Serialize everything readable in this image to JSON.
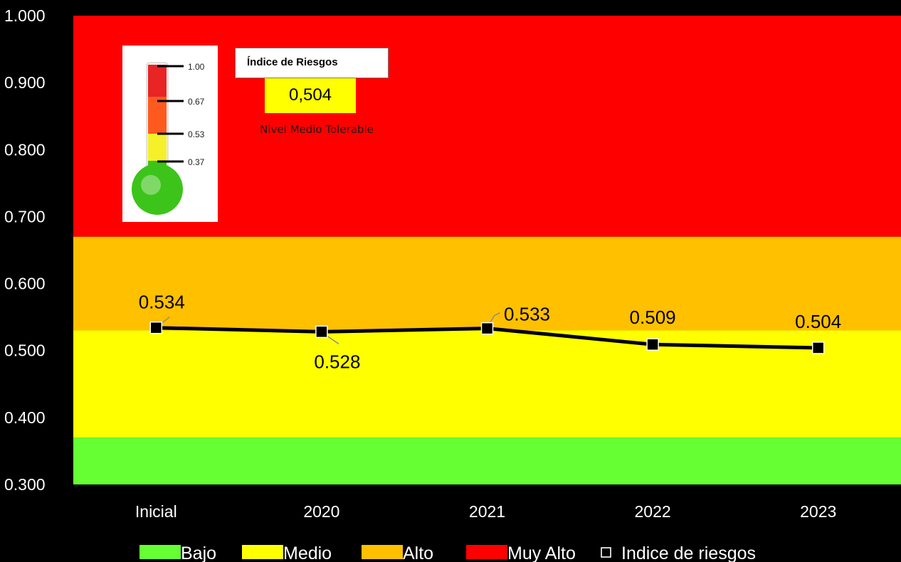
{
  "chart_data": {
    "type": "line",
    "categories": [
      "Inicial",
      "2020",
      "2021",
      "2022",
      "2023"
    ],
    "series": [
      {
        "name": "Indice de riesgos",
        "values": [
          0.534,
          0.528,
          0.533,
          0.509,
          0.504
        ],
        "labels": [
          "0.534",
          "0.528",
          "0.533",
          "0.509",
          "0.504"
        ],
        "color": "#000000",
        "marker": "square"
      }
    ],
    "ylim": [
      0.3,
      1.0
    ],
    "yticks": [
      "1.000",
      "0.900",
      "0.800",
      "0.700",
      "0.600",
      "0.500",
      "0.400",
      "0.300"
    ],
    "ytick_values": [
      1.0,
      0.9,
      0.8,
      0.7,
      0.6,
      0.5,
      0.4,
      0.3
    ],
    "bands": [
      {
        "name": "Bajo",
        "from": 0.3,
        "to": 0.37,
        "color": "#66ff33"
      },
      {
        "name": "Medio",
        "from": 0.37,
        "to": 0.53,
        "color": "#ffff00"
      },
      {
        "name": "Alto",
        "from": 0.53,
        "to": 0.67,
        "color": "#ffc000"
      },
      {
        "name": "Muy Alto",
        "from": 0.67,
        "to": 1.0,
        "color": "#ff0000"
      }
    ],
    "legend": {
      "position": "bottom",
      "items": [
        {
          "label": "Bajo",
          "color": "#66ff33",
          "kind": "band"
        },
        {
          "label": "Medio",
          "color": "#ffff00",
          "kind": "band"
        },
        {
          "label": "Alto",
          "color": "#ffc000",
          "kind": "band"
        },
        {
          "label": "Muy Alto",
          "color": "#ff0000",
          "kind": "band"
        },
        {
          "label": "Indice de riesgos",
          "color": "#ffffff",
          "kind": "marker"
        }
      ]
    },
    "grid": false,
    "title": "",
    "xlabel": "",
    "ylabel": "",
    "background": "#000000"
  },
  "inset": {
    "title": "Índice de Riesgos",
    "value": "0,504",
    "level": "Nivel Medio Tolerable",
    "thermometer_scale": [
      "1.00",
      "0.67",
      "0.53",
      "0.37"
    ],
    "thermometer_colors": {
      "top": "#e82424",
      "upper": "#ff5a1e",
      "middle": "#f5f02a",
      "bulb": "#3cc41a"
    }
  }
}
